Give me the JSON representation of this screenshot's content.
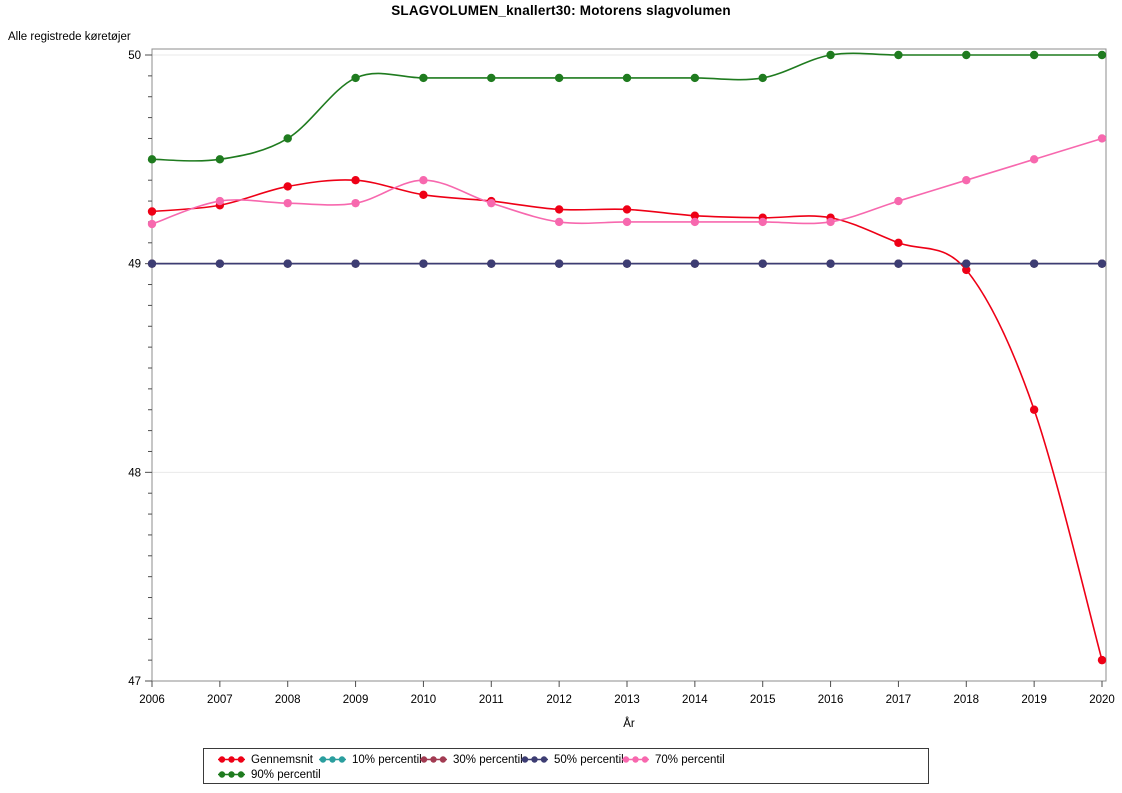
{
  "title": "SLAGVOLUMEN_knallert30: Motorens slagvolumen",
  "y_axis_top_label": "Alle registrede køretøjer",
  "x_axis_label": "År",
  "colors": {
    "gennemsnit": "#ee0016",
    "p10": "#2a9e9e",
    "p30": "#a23b52",
    "p50": "#3d3d73",
    "p70": "#f768ae",
    "p90": "#1f7b1f",
    "grid": "#e9e9e9",
    "frame": "#8c8c8c",
    "tick": "#4d4d4d",
    "text": "#000000"
  },
  "chart_data": {
    "type": "line",
    "x": [
      2006,
      2007,
      2008,
      2009,
      2010,
      2011,
      2012,
      2013,
      2014,
      2015,
      2016,
      2017,
      2018,
      2019,
      2020
    ],
    "series": [
      {
        "name": "Gennemsnit",
        "color_key": "gennemsnit",
        "values": [
          49.25,
          49.28,
          49.37,
          49.4,
          49.33,
          49.3,
          49.26,
          49.26,
          49.23,
          49.22,
          49.22,
          49.1,
          48.97,
          48.3,
          47.1
        ]
      },
      {
        "name": "10% percentil",
        "color_key": "p10",
        "values": [
          49.0,
          49.0,
          49.0,
          49.0,
          49.0,
          49.0,
          49.0,
          49.0,
          49.0,
          49.0,
          49.0,
          49.0,
          49.0,
          49.0,
          49.0
        ]
      },
      {
        "name": "30% percentil",
        "color_key": "p30",
        "values": [
          49.0,
          49.0,
          49.0,
          49.0,
          49.0,
          49.0,
          49.0,
          49.0,
          49.0,
          49.0,
          49.0,
          49.0,
          49.0,
          49.0,
          49.0
        ]
      },
      {
        "name": "50% percentil",
        "color_key": "p50",
        "values": [
          49.0,
          49.0,
          49.0,
          49.0,
          49.0,
          49.0,
          49.0,
          49.0,
          49.0,
          49.0,
          49.0,
          49.0,
          49.0,
          49.0,
          49.0
        ]
      },
      {
        "name": "70% percentil",
        "color_key": "p70",
        "values": [
          49.19,
          49.3,
          49.29,
          49.29,
          49.4,
          49.29,
          49.2,
          49.2,
          49.2,
          49.2,
          49.2,
          49.3,
          49.4,
          49.5,
          49.6
        ]
      },
      {
        "name": "90% percentil",
        "color_key": "p90",
        "values": [
          49.5,
          49.5,
          49.6,
          49.89,
          49.89,
          49.89,
          49.89,
          49.89,
          49.89,
          49.89,
          50.0,
          50.0,
          50.0,
          50.0,
          50.0
        ]
      }
    ],
    "title": "SLAGVOLUMEN_knallert30: Motorens slagvolumen",
    "xlabel": "År",
    "ylabel": "Alle registrede køretøjer",
    "ylim": [
      47,
      50
    ],
    "yticks": [
      47,
      48,
      49,
      50
    ],
    "y_minor_step": 0.1,
    "grid": true,
    "legend_position": "bottom",
    "legend_items_per_row": 5
  }
}
